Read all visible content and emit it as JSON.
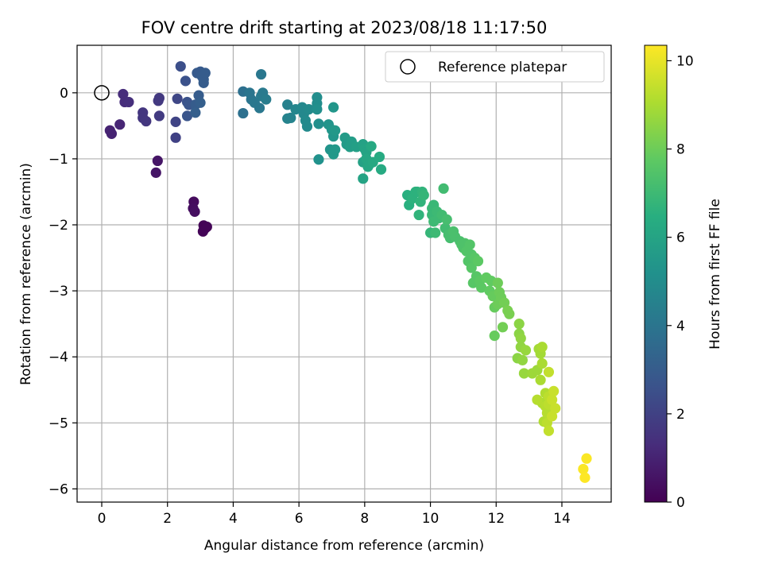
{
  "chart_data": {
    "type": "scatter",
    "title": "FOV centre drift starting at 2023/08/18 11:17:50",
    "xlabel": "Angular distance from reference (arcmin)",
    "ylabel": "Rotation from reference (arcmin)",
    "xlim": [
      -0.75,
      15.5
    ],
    "ylim": [
      -6.2,
      0.72
    ],
    "xticks": [
      0,
      2,
      4,
      6,
      8,
      10,
      12,
      14
    ],
    "yticks": [
      0,
      -1,
      -2,
      -3,
      -4,
      -5,
      -6
    ],
    "xtick_labels": [
      "0",
      "2",
      "4",
      "6",
      "8",
      "10",
      "12",
      "14"
    ],
    "ytick_labels": [
      "0",
      "−1",
      "−2",
      "−3",
      "−4",
      "−5",
      "−6"
    ],
    "grid": true,
    "legend": {
      "placement": "top-right",
      "entries": [
        {
          "label": "Reference platepar",
          "marker": "open-circle"
        }
      ]
    },
    "reference_point": {
      "x": 0,
      "y": 0
    },
    "colorbar": {
      "label": "Hours from first FF file",
      "colormap": "viridis",
      "range": [
        0,
        10.35
      ],
      "ticks": [
        0,
        2,
        4,
        6,
        8,
        10
      ],
      "tick_labels": [
        "0",
        "2",
        "4",
        "6",
        "8",
        "10"
      ]
    },
    "points": [
      [
        3.1,
        -2.01,
        0.05
      ],
      [
        3.15,
        -2.05,
        0.07
      ],
      [
        3.08,
        -2.1,
        0.1
      ],
      [
        3.2,
        -2.03,
        0.1
      ],
      [
        2.8,
        -1.65,
        0.3
      ],
      [
        2.78,
        -1.75,
        0.35
      ],
      [
        2.83,
        -1.8,
        0.4
      ],
      [
        1.7,
        -1.03,
        0.6
      ],
      [
        1.65,
        -1.21,
        0.6
      ],
      [
        0.25,
        -0.57,
        1.0
      ],
      [
        0.3,
        -0.62,
        1.0
      ],
      [
        0.55,
        -0.48,
        1.1
      ],
      [
        0.65,
        -0.02,
        1.3
      ],
      [
        0.7,
        -0.14,
        1.3
      ],
      [
        0.82,
        -0.14,
        1.35
      ],
      [
        1.25,
        -0.3,
        1.6
      ],
      [
        1.25,
        -0.38,
        1.6
      ],
      [
        1.35,
        -0.43,
        1.65
      ],
      [
        1.75,
        -0.08,
        1.7
      ],
      [
        1.72,
        -0.12,
        1.7
      ],
      [
        1.75,
        -0.35,
        1.8
      ],
      [
        2.25,
        -0.68,
        2.0
      ],
      [
        2.25,
        -0.44,
        2.1
      ],
      [
        2.3,
        -0.09,
        2.2
      ],
      [
        2.4,
        0.4,
        2.5
      ],
      [
        2.55,
        0.18,
        2.6
      ],
      [
        2.6,
        -0.14,
        2.6
      ],
      [
        2.65,
        -0.18,
        2.7
      ],
      [
        2.6,
        -0.35,
        2.7
      ],
      [
        2.9,
        0.3,
        2.9
      ],
      [
        3.0,
        0.32,
        2.9
      ],
      [
        3.05,
        0.25,
        3.0
      ],
      [
        3.1,
        0.2,
        3.0
      ],
      [
        3.15,
        0.3,
        3.0
      ],
      [
        3.1,
        0.15,
        3.0
      ],
      [
        2.95,
        -0.04,
        3.0
      ],
      [
        2.85,
        -0.18,
        3.0
      ],
      [
        2.85,
        -0.3,
        3.1
      ],
      [
        3.0,
        -0.15,
        3.1
      ],
      [
        4.3,
        0.02,
        3.8
      ],
      [
        4.3,
        -0.31,
        3.8
      ],
      [
        4.5,
        0.0,
        4.0
      ],
      [
        4.55,
        -0.1,
        4.0
      ],
      [
        4.65,
        -0.15,
        4.1
      ],
      [
        4.8,
        -0.23,
        4.1
      ],
      [
        4.85,
        0.28,
        4.1
      ],
      [
        4.85,
        -0.05,
        4.2
      ],
      [
        4.9,
        0.0,
        4.2
      ],
      [
        5.0,
        -0.1,
        4.3
      ],
      [
        5.65,
        -0.18,
        4.5
      ],
      [
        5.65,
        -0.39,
        4.6
      ],
      [
        5.75,
        -0.38,
        4.6
      ],
      [
        5.9,
        -0.25,
        4.7
      ],
      [
        6.1,
        -0.22,
        4.8
      ],
      [
        6.15,
        -0.32,
        4.8
      ],
      [
        6.2,
        -0.42,
        4.9
      ],
      [
        6.25,
        -0.51,
        4.9
      ],
      [
        6.3,
        -0.25,
        4.9
      ],
      [
        6.55,
        -0.07,
        5.0
      ],
      [
        6.55,
        -0.16,
        5.0
      ],
      [
        6.55,
        -0.25,
        5.1
      ],
      [
        6.6,
        -0.47,
        5.1
      ],
      [
        6.6,
        -1.01,
        5.2
      ],
      [
        6.9,
        -0.48,
        5.3
      ],
      [
        6.95,
        -0.86,
        5.3
      ],
      [
        7.0,
        -0.56,
        5.4
      ],
      [
        7.05,
        -0.22,
        5.4
      ],
      [
        7.05,
        -0.66,
        5.4
      ],
      [
        7.05,
        -0.93,
        5.5
      ],
      [
        7.1,
        -0.86,
        5.5
      ],
      [
        7.1,
        -0.57,
        5.5
      ],
      [
        7.4,
        -0.68,
        5.6
      ],
      [
        7.45,
        -0.78,
        5.6
      ],
      [
        7.55,
        -0.82,
        5.7
      ],
      [
        7.6,
        -0.74,
        5.7
      ],
      [
        7.75,
        -0.82,
        5.8
      ],
      [
        7.95,
        -0.78,
        5.9
      ],
      [
        7.95,
        -1.05,
        5.9
      ],
      [
        7.95,
        -1.3,
        6.0
      ],
      [
        8.0,
        -0.85,
        6.0
      ],
      [
        8.05,
        -0.9,
        6.0
      ],
      [
        8.05,
        -1.0,
        6.1
      ],
      [
        8.1,
        -1.12,
        6.1
      ],
      [
        8.15,
        -1.08,
        6.1
      ],
      [
        8.2,
        -0.81,
        6.2
      ],
      [
        8.25,
        -1.05,
        6.2
      ],
      [
        8.45,
        -0.97,
        6.3
      ],
      [
        8.5,
        -1.16,
        6.3
      ],
      [
        9.3,
        -1.55,
        6.5
      ],
      [
        9.35,
        -1.7,
        6.5
      ],
      [
        9.45,
        -1.6,
        6.6
      ],
      [
        9.55,
        -1.5,
        6.6
      ],
      [
        9.6,
        -1.5,
        6.6
      ],
      [
        9.65,
        -1.85,
        6.7
      ],
      [
        9.7,
        -1.65,
        6.7
      ],
      [
        9.75,
        -1.5,
        6.7
      ],
      [
        9.8,
        -1.55,
        6.8
      ],
      [
        10.0,
        -2.12,
        6.8
      ],
      [
        10.05,
        -1.75,
        6.9
      ],
      [
        10.05,
        -1.85,
        6.9
      ],
      [
        10.1,
        -1.7,
        6.9
      ],
      [
        10.1,
        -1.95,
        7.0
      ],
      [
        10.15,
        -2.12,
        7.0
      ],
      [
        10.2,
        -1.8,
        7.0
      ],
      [
        10.25,
        -1.9,
        7.0
      ],
      [
        10.35,
        -1.85,
        7.1
      ],
      [
        10.4,
        -1.45,
        7.1
      ],
      [
        10.45,
        -2.05,
        7.1
      ],
      [
        10.5,
        -1.92,
        7.2
      ],
      [
        10.55,
        -2.15,
        7.2
      ],
      [
        10.6,
        -2.2,
        7.2
      ],
      [
        10.7,
        -2.1,
        7.3
      ],
      [
        10.75,
        -2.18,
        7.3
      ],
      [
        10.9,
        -2.25,
        7.3
      ],
      [
        10.95,
        -2.3,
        7.4
      ],
      [
        11.0,
        -2.35,
        7.4
      ],
      [
        11.05,
        -2.28,
        7.4
      ],
      [
        11.1,
        -2.4,
        7.5
      ],
      [
        11.15,
        -2.55,
        7.5
      ],
      [
        11.2,
        -2.3,
        7.5
      ],
      [
        11.25,
        -2.45,
        7.5
      ],
      [
        11.25,
        -2.65,
        7.6
      ],
      [
        11.3,
        -2.88,
        7.6
      ],
      [
        11.35,
        -2.5,
        7.6
      ],
      [
        11.4,
        -2.78,
        7.6
      ],
      [
        11.45,
        -2.55,
        7.7
      ],
      [
        11.5,
        -2.85,
        7.7
      ],
      [
        11.55,
        -2.95,
        7.7
      ],
      [
        11.7,
        -2.8,
        7.8
      ],
      [
        11.8,
        -3.0,
        7.8
      ],
      [
        11.85,
        -2.85,
        7.8
      ],
      [
        11.9,
        -3.08,
        7.9
      ],
      [
        11.95,
        -3.25,
        7.9
      ],
      [
        11.95,
        -3.68,
        7.9
      ],
      [
        12.05,
        -2.88,
        8.0
      ],
      [
        12.05,
        -3.2,
        8.0
      ],
      [
        12.1,
        -3.02,
        8.0
      ],
      [
        12.15,
        -3.1,
        8.0
      ],
      [
        12.2,
        -3.55,
        8.1
      ],
      [
        12.25,
        -3.18,
        8.1
      ],
      [
        12.35,
        -3.3,
        8.2
      ],
      [
        12.4,
        -3.35,
        8.2
      ],
      [
        12.65,
        -4.02,
        8.5
      ],
      [
        12.7,
        -3.5,
        8.5
      ],
      [
        12.7,
        -3.65,
        8.5
      ],
      [
        12.75,
        -3.72,
        8.6
      ],
      [
        12.75,
        -3.85,
        8.6
      ],
      [
        12.8,
        -4.05,
        8.6
      ],
      [
        12.85,
        -4.25,
        8.7
      ],
      [
        12.9,
        -3.9,
        8.7
      ],
      [
        13.1,
        -4.25,
        8.8
      ],
      [
        13.25,
        -4.2,
        8.8
      ],
      [
        13.3,
        -3.88,
        8.9
      ],
      [
        13.35,
        -3.95,
        8.9
      ],
      [
        13.35,
        -4.35,
        9.0
      ],
      [
        13.4,
        -3.85,
        9.0
      ],
      [
        13.4,
        -4.1,
        9.0
      ],
      [
        13.4,
        -4.7,
        9.1
      ],
      [
        13.45,
        -4.98,
        9.1
      ],
      [
        13.5,
        -4.55,
        9.1
      ],
      [
        13.5,
        -4.75,
        9.2
      ],
      [
        13.55,
        -4.85,
        9.2
      ],
      [
        13.55,
        -5.0,
        9.3
      ],
      [
        13.6,
        -4.6,
        9.3
      ],
      [
        13.6,
        -4.72,
        9.3
      ],
      [
        13.6,
        -5.12,
        9.4
      ],
      [
        13.6,
        -4.23,
        9.4
      ],
      [
        13.7,
        -4.9,
        9.5
      ],
      [
        13.7,
        -4.65,
        9.5
      ],
      [
        13.75,
        -4.52,
        9.5
      ],
      [
        13.8,
        -4.78,
        9.5
      ],
      [
        13.25,
        -4.65,
        9.2
      ],
      [
        14.75,
        -5.54,
        10.3
      ],
      [
        14.65,
        -5.7,
        10.3
      ],
      [
        14.7,
        -5.83,
        10.35
      ]
    ]
  }
}
